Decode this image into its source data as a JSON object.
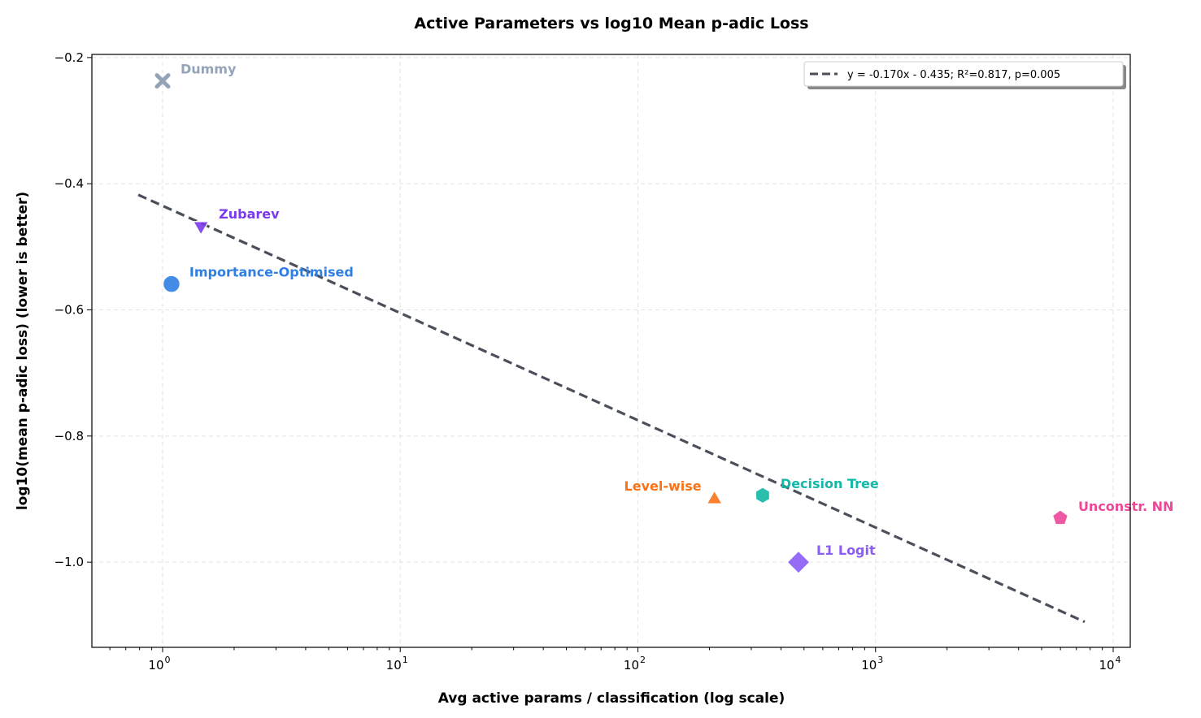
{
  "chart_data": {
    "type": "scatter",
    "title": "Active Parameters vs log10 Mean p-adic Loss",
    "xlabel": "Avg active params / classification (log scale)",
    "ylabel": "log10(mean p-adic loss) (lower is better)",
    "xscale": "log",
    "xlim": [
      0.504,
      11800
    ],
    "ylim": [
      -1.135,
      -0.195
    ],
    "x_ticks": [
      1,
      10,
      100,
      1000,
      10000
    ],
    "x_tick_labels": [
      "10",
      "10",
      "10",
      "10",
      "10"
    ],
    "x_tick_exponents": [
      "0",
      "1",
      "2",
      "3",
      "4"
    ],
    "y_ticks": [
      -0.2,
      -0.4,
      -0.6,
      -0.8,
      -1.0
    ],
    "y_tick_labels": [
      "−0.2",
      "−0.4",
      "−0.6",
      "−0.8",
      "−1.0"
    ],
    "grid": true,
    "legend_placement": "top-right",
    "points": [
      {
        "label": "Dummy",
        "x": 1.0,
        "y": -0.237,
        "marker": "x",
        "color": "#94a3b8"
      },
      {
        "label": "Zubarev",
        "x": 1.45,
        "y": -0.467,
        "marker": "triangle-down",
        "color": "#7c3aed"
      },
      {
        "label": "Importance-Optimised",
        "x": 1.09,
        "y": -0.559,
        "marker": "circle",
        "color": "#2f7fe3"
      },
      {
        "label": "Level-wise",
        "x": 210,
        "y": -0.898,
        "marker": "triangle-up",
        "color": "#f97316"
      },
      {
        "label": "Decision Tree",
        "x": 335,
        "y": -0.894,
        "marker": "hexagon",
        "color": "#14b8a6"
      },
      {
        "label": "Unconstr. NN",
        "x": 5990,
        "y": -0.93,
        "marker": "pentagon",
        "color": "#ec4899"
      },
      {
        "label": "L1 Logit",
        "x": 474,
        "y": -1.0,
        "marker": "diamond",
        "color": "#8b5cf6"
      }
    ],
    "fit": {
      "slope": -0.17,
      "intercept": -0.435,
      "x_range": [
        0.79,
        7590
      ],
      "color": "#4b4f5a",
      "style": "dashed",
      "legend_label": "y = -0.170x - 0.435; R²=0.817, p=0.005"
    }
  }
}
